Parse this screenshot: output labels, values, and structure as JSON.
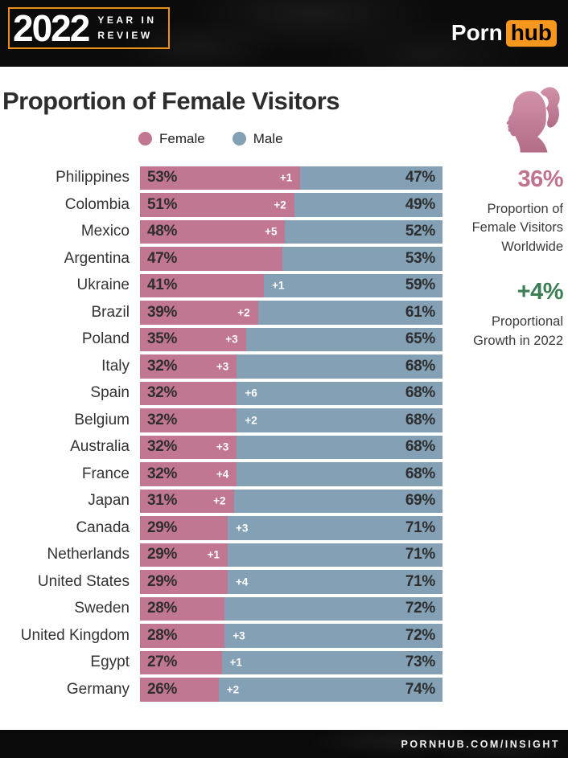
{
  "header": {
    "year_badge": {
      "year": "2022",
      "line1": "YEAR IN",
      "line2": "REVIEW"
    },
    "logo": {
      "part1": "Porn",
      "part2": "hub"
    }
  },
  "title": "Proportion of Female Visitors",
  "legend": [
    {
      "label": "Female",
      "color": "#c17791"
    },
    {
      "label": "Male",
      "color": "#83a0b5"
    }
  ],
  "chart_data": {
    "type": "bar",
    "orientation": "horizontal",
    "stacked": true,
    "x_unit": "percent",
    "xlim": [
      0,
      100
    ],
    "title": "Proportion of Female Visitors",
    "legend_position": "top",
    "legend_entries": [
      "Female",
      "Male"
    ],
    "rows": [
      {
        "country": "Philippines",
        "female": 53,
        "male": 47,
        "growth": "+1",
        "growth_side": "pink"
      },
      {
        "country": "Colombia",
        "female": 51,
        "male": 49,
        "growth": "+2",
        "growth_side": "pink"
      },
      {
        "country": "Mexico",
        "female": 48,
        "male": 52,
        "growth": "+5",
        "growth_side": "pink"
      },
      {
        "country": "Argentina",
        "female": 47,
        "male": 53,
        "growth": null,
        "growth_side": null
      },
      {
        "country": "Ukraine",
        "female": 41,
        "male": 59,
        "growth": "+1",
        "growth_side": "blue"
      },
      {
        "country": "Brazil",
        "female": 39,
        "male": 61,
        "growth": "+2",
        "growth_side": "pink"
      },
      {
        "country": "Poland",
        "female": 35,
        "male": 65,
        "growth": "+3",
        "growth_side": "pink"
      },
      {
        "country": "Italy",
        "female": 32,
        "male": 68,
        "growth": "+3",
        "growth_side": "pink"
      },
      {
        "country": "Spain",
        "female": 32,
        "male": 68,
        "growth": "+6",
        "growth_side": "blue"
      },
      {
        "country": "Belgium",
        "female": 32,
        "male": 68,
        "growth": "+2",
        "growth_side": "blue"
      },
      {
        "country": "Australia",
        "female": 32,
        "male": 68,
        "growth": "+3",
        "growth_side": "pink"
      },
      {
        "country": "France",
        "female": 32,
        "male": 68,
        "growth": "+4",
        "growth_side": "pink"
      },
      {
        "country": "Japan",
        "female": 31,
        "male": 69,
        "growth": "+2",
        "growth_side": "pink"
      },
      {
        "country": "Canada",
        "female": 29,
        "male": 71,
        "growth": "+3",
        "growth_side": "blue"
      },
      {
        "country": "Netherlands",
        "female": 29,
        "male": 71,
        "growth": "+1",
        "growth_side": "pink"
      },
      {
        "country": "United States",
        "female": 29,
        "male": 71,
        "growth": "+4",
        "growth_side": "blue"
      },
      {
        "country": "Sweden",
        "female": 28,
        "male": 72,
        "growth": null,
        "growth_side": null
      },
      {
        "country": "United Kingdom",
        "female": 28,
        "male": 72,
        "growth": "+3",
        "growth_side": "blue"
      },
      {
        "country": "Egypt",
        "female": 27,
        "male": 73,
        "growth": "+1",
        "growth_side": "blue"
      },
      {
        "country": "Germany",
        "female": 26,
        "male": 74,
        "growth": "+2",
        "growth_side": "blue"
      }
    ]
  },
  "sidebar": {
    "stat1_value": "36%",
    "stat1_label": "Proportion of Female Visitors Worldwide",
    "stat2_value": "+4%",
    "stat2_label": "Proportional Growth in 2022"
  },
  "footer": {
    "text": "PORNHUB.COM/INSIGHT"
  },
  "colors": {
    "female_bar": "#c17791",
    "male_bar": "#83a0b5",
    "pink_text": "#c0728f",
    "green_text": "#3b7e53",
    "orange": "#f7971e",
    "percent_text": "#2e2e2e"
  }
}
